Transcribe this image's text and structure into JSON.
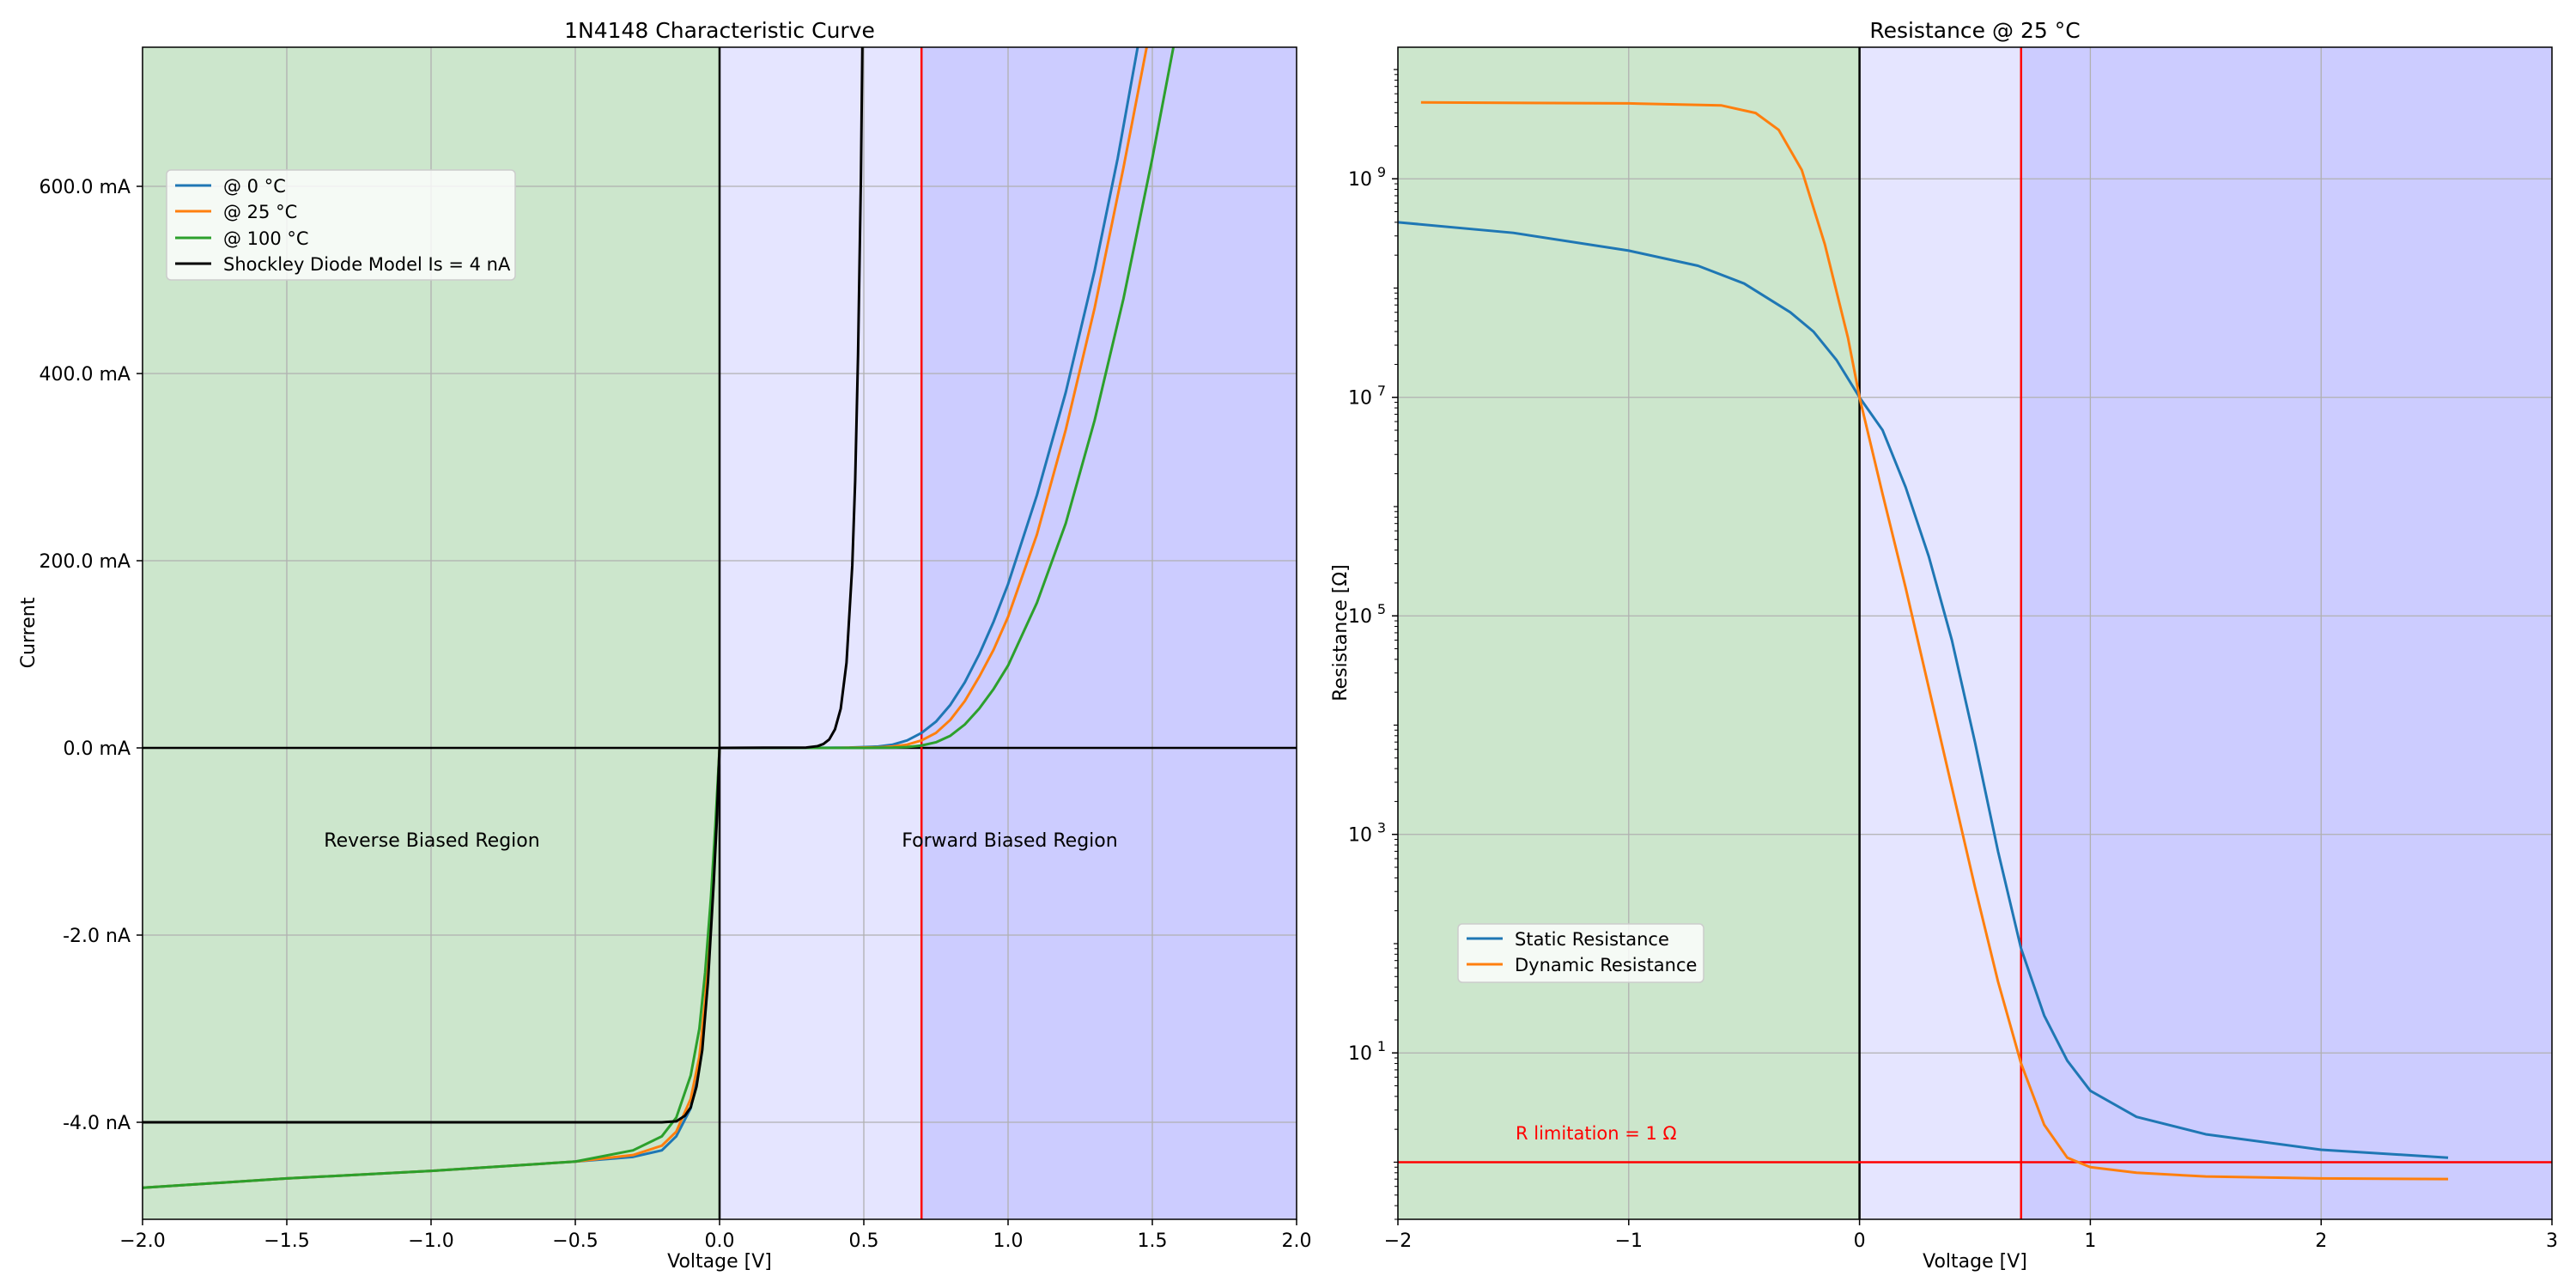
{
  "colors": {
    "reverse_region": "#cce6cc",
    "forward_light": "#e5e5ff",
    "forward_dark": "#ccccff",
    "threshold_line": "#ff0000",
    "grid": "#b0b0b0",
    "c0": "#1f77b4",
    "c25": "#ff7f0e",
    "c100": "#2ca02c",
    "shockley": "#000000"
  },
  "chart_data": [
    {
      "type": "line",
      "title": "1N4148 Characteristic Curve",
      "xlabel": "Voltage [V]",
      "ylabel": "Current",
      "xlim": [
        -2.0,
        2.0
      ],
      "x_ticks": [
        -2.0,
        -1.5,
        -1.0,
        -0.5,
        0.0,
        0.5,
        1.0,
        1.5,
        2.0
      ],
      "x_tick_labels": [
        "−2.0",
        "−1.5",
        "−1.0",
        "−0.5",
        "0.0",
        "0.5",
        "1.0",
        "1.5",
        "2.0"
      ],
      "y_scale": "split: reverse region in nA, forward region in mA",
      "y_tick_labels": [
        "600.0 mA",
        "400.0 mA",
        "200.0 mA",
        "0.0 mA",
        "-2.0 nA",
        "-4.0 nA"
      ],
      "threshold_voltage": 0.7,
      "grid": true,
      "legend_position": "upper-left",
      "region_labels": [
        "Reverse Biased Region",
        "Forward Biased Region"
      ],
      "series": [
        {
          "name": "@ 0 °C",
          "color_key": "c0",
          "reverse_nA": [
            [
              -2.0,
              -4.7
            ],
            [
              -1.5,
              -4.6
            ],
            [
              -1.0,
              -4.52
            ],
            [
              -0.5,
              -4.42
            ],
            [
              -0.3,
              -4.37
            ],
            [
              -0.2,
              -4.3
            ],
            [
              -0.15,
              -4.15
            ],
            [
              -0.1,
              -3.85
            ],
            [
              -0.07,
              -3.4
            ],
            [
              -0.05,
              -2.8
            ],
            [
              -0.03,
              -1.9
            ],
            [
              -0.015,
              -1.0
            ],
            [
              0.0,
              0.0
            ]
          ],
          "forward_mA": [
            [
              0.0,
              0.0
            ],
            [
              0.3,
              0.0
            ],
            [
              0.45,
              0.3
            ],
            [
              0.55,
              1.5
            ],
            [
              0.6,
              3.5
            ],
            [
              0.65,
              8.0
            ],
            [
              0.7,
              16.0
            ],
            [
              0.75,
              28.0
            ],
            [
              0.8,
              46.0
            ],
            [
              0.85,
              70.0
            ],
            [
              0.9,
              100.0
            ],
            [
              0.95,
              135.0
            ],
            [
              1.0,
              175.0
            ],
            [
              1.1,
              270.0
            ],
            [
              1.2,
              380.0
            ],
            [
              1.3,
              510.0
            ],
            [
              1.38,
              630.0
            ],
            [
              1.45,
              750.0
            ]
          ]
        },
        {
          "name": "@ 25 °C",
          "color_key": "c25",
          "reverse_nA": [
            [
              -2.0,
              -4.7
            ],
            [
              -1.5,
              -4.6
            ],
            [
              -1.0,
              -4.52
            ],
            [
              -0.5,
              -4.42
            ],
            [
              -0.3,
              -4.35
            ],
            [
              -0.2,
              -4.25
            ],
            [
              -0.15,
              -4.1
            ],
            [
              -0.1,
              -3.75
            ],
            [
              -0.07,
              -3.3
            ],
            [
              -0.05,
              -2.7
            ],
            [
              -0.03,
              -1.8
            ],
            [
              -0.015,
              -0.95
            ],
            [
              0.0,
              0.0
            ]
          ],
          "forward_mA": [
            [
              0.0,
              0.0
            ],
            [
              0.4,
              0.0
            ],
            [
              0.55,
              0.6
            ],
            [
              0.6,
              1.5
            ],
            [
              0.65,
              3.5
            ],
            [
              0.7,
              8.0
            ],
            [
              0.75,
              16.0
            ],
            [
              0.8,
              30.0
            ],
            [
              0.85,
              50.0
            ],
            [
              0.9,
              76.0
            ],
            [
              0.95,
              105.0
            ],
            [
              1.0,
              140.0
            ],
            [
              1.1,
              228.0
            ],
            [
              1.2,
              340.0
            ],
            [
              1.3,
              470.0
            ],
            [
              1.4,
              620.0
            ],
            [
              1.5,
              780.0
            ]
          ]
        },
        {
          "name": "@ 100 °C",
          "color_key": "c100",
          "reverse_nA": [
            [
              -2.0,
              -4.7
            ],
            [
              -1.5,
              -4.6
            ],
            [
              -1.0,
              -4.52
            ],
            [
              -0.5,
              -4.42
            ],
            [
              -0.3,
              -4.3
            ],
            [
              -0.2,
              -4.15
            ],
            [
              -0.15,
              -3.95
            ],
            [
              -0.1,
              -3.5
            ],
            [
              -0.07,
              -3.0
            ],
            [
              -0.05,
              -2.4
            ],
            [
              -0.03,
              -1.6
            ],
            [
              -0.015,
              -0.85
            ],
            [
              0.0,
              0.0
            ]
          ],
          "forward_mA": [
            [
              0.0,
              0.0
            ],
            [
              0.5,
              0.0
            ],
            [
              0.6,
              0.3
            ],
            [
              0.65,
              0.9
            ],
            [
              0.7,
              2.5
            ],
            [
              0.75,
              6.0
            ],
            [
              0.8,
              13.0
            ],
            [
              0.85,
              25.0
            ],
            [
              0.9,
              42.0
            ],
            [
              0.95,
              63.0
            ],
            [
              1.0,
              88.0
            ],
            [
              1.1,
              155.0
            ],
            [
              1.2,
              240.0
            ],
            [
              1.3,
              350.0
            ],
            [
              1.4,
              480.0
            ],
            [
              1.5,
              630.0
            ],
            [
              1.58,
              760.0
            ]
          ]
        },
        {
          "name": "Shockley Diode Model Is = 4 nA",
          "color_key": "shockley",
          "reverse_nA": [
            [
              -2.0,
              -4.0
            ],
            [
              -0.2,
              -4.0
            ],
            [
              -0.15,
              -3.99
            ],
            [
              -0.12,
              -3.93
            ],
            [
              -0.1,
              -3.84
            ],
            [
              -0.08,
              -3.62
            ],
            [
              -0.06,
              -3.23
            ],
            [
              -0.04,
              -2.49
            ],
            [
              -0.02,
              -1.43
            ],
            [
              -0.01,
              -0.8
            ],
            [
              0.0,
              0.0
            ]
          ],
          "forward_mA": [
            [
              0.0,
              0.0
            ],
            [
              0.3,
              0.4
            ],
            [
              0.34,
              1.9
            ],
            [
              0.36,
              4.2
            ],
            [
              0.38,
              9.0
            ],
            [
              0.4,
              19.8
            ],
            [
              0.42,
              42.0
            ],
            [
              0.44,
              91.0
            ],
            [
              0.46,
              195.0
            ],
            [
              0.47,
              285.0
            ],
            [
              0.48,
              420.0
            ],
            [
              0.49,
              610.0
            ],
            [
              0.495,
              750.0
            ]
          ]
        }
      ]
    },
    {
      "type": "line",
      "title": "Resistance @ 25 °C",
      "xlabel": "Voltage [V]",
      "ylabel": "Resistance [Ω]",
      "xlim": [
        -2.0,
        3.0
      ],
      "x_ticks": [
        -2,
        -1,
        0,
        1,
        2,
        3
      ],
      "x_tick_labels": [
        "−2",
        "−1",
        "0",
        "1",
        "2",
        "3"
      ],
      "y_scale": "log",
      "ylim": [
        0.3,
        16000000000.0
      ],
      "y_ticks": [
        10,
        1000,
        100000,
        10000000,
        1000000000
      ],
      "y_tick_labels": [
        {
          "base": "10",
          "exp": "1"
        },
        {
          "base": "10",
          "exp": "3"
        },
        {
          "base": "10",
          "exp": "5"
        },
        {
          "base": "10",
          "exp": "7"
        },
        {
          "base": "10",
          "exp": "9"
        }
      ],
      "threshold_voltage": 0.7,
      "limit_line": {
        "value": 1,
        "label": "R limitation = 1 Ω"
      },
      "grid": true,
      "legend_position": "lower-left",
      "series": [
        {
          "name": "Static Resistance",
          "color_key": "c0",
          "points": [
            [
              -2.0,
              400000000.0
            ],
            [
              -1.5,
              320000000.0
            ],
            [
              -1.0,
              220000000.0
            ],
            [
              -0.7,
              160000000.0
            ],
            [
              -0.5,
              110000000.0
            ],
            [
              -0.3,
              60000000.0
            ],
            [
              -0.2,
              40000000.0
            ],
            [
              -0.1,
              22000000.0
            ],
            [
              0.0,
              10000000.0
            ],
            [
              0.1,
              5000000.0
            ],
            [
              0.2,
              1500000.0
            ],
            [
              0.3,
              350000.0
            ],
            [
              0.4,
              60000.0
            ],
            [
              0.5,
              7000
            ],
            [
              0.6,
              700
            ],
            [
              0.7,
              90
            ],
            [
              0.8,
              22
            ],
            [
              0.9,
              8.5
            ],
            [
              1.0,
              4.5
            ],
            [
              1.2,
              2.6
            ],
            [
              1.5,
              1.8
            ],
            [
              2.0,
              1.3
            ],
            [
              2.55,
              1.1
            ]
          ]
        },
        {
          "name": "Dynamic Resistance",
          "color_key": "c25",
          "points": [
            [
              -1.9,
              5000000000.0
            ],
            [
              -1.0,
              4900000000.0
            ],
            [
              -0.6,
              4700000000.0
            ],
            [
              -0.45,
              4000000000.0
            ],
            [
              -0.35,
              2800000000.0
            ],
            [
              -0.25,
              1200000000.0
            ],
            [
              -0.15,
              250000000.0
            ],
            [
              -0.05,
              35000000.0
            ],
            [
              0.0,
              10000000.0
            ],
            [
              0.1,
              1300000.0
            ],
            [
              0.2,
              180000.0
            ],
            [
              0.3,
              22000.0
            ],
            [
              0.4,
              2700
            ],
            [
              0.5,
              330
            ],
            [
              0.6,
              45
            ],
            [
              0.7,
              8
            ],
            [
              0.8,
              2.2
            ],
            [
              0.9,
              1.1
            ],
            [
              1.0,
              0.9
            ],
            [
              1.2,
              0.8
            ],
            [
              1.5,
              0.74
            ],
            [
              2.0,
              0.71
            ],
            [
              2.55,
              0.7
            ]
          ]
        }
      ]
    }
  ]
}
